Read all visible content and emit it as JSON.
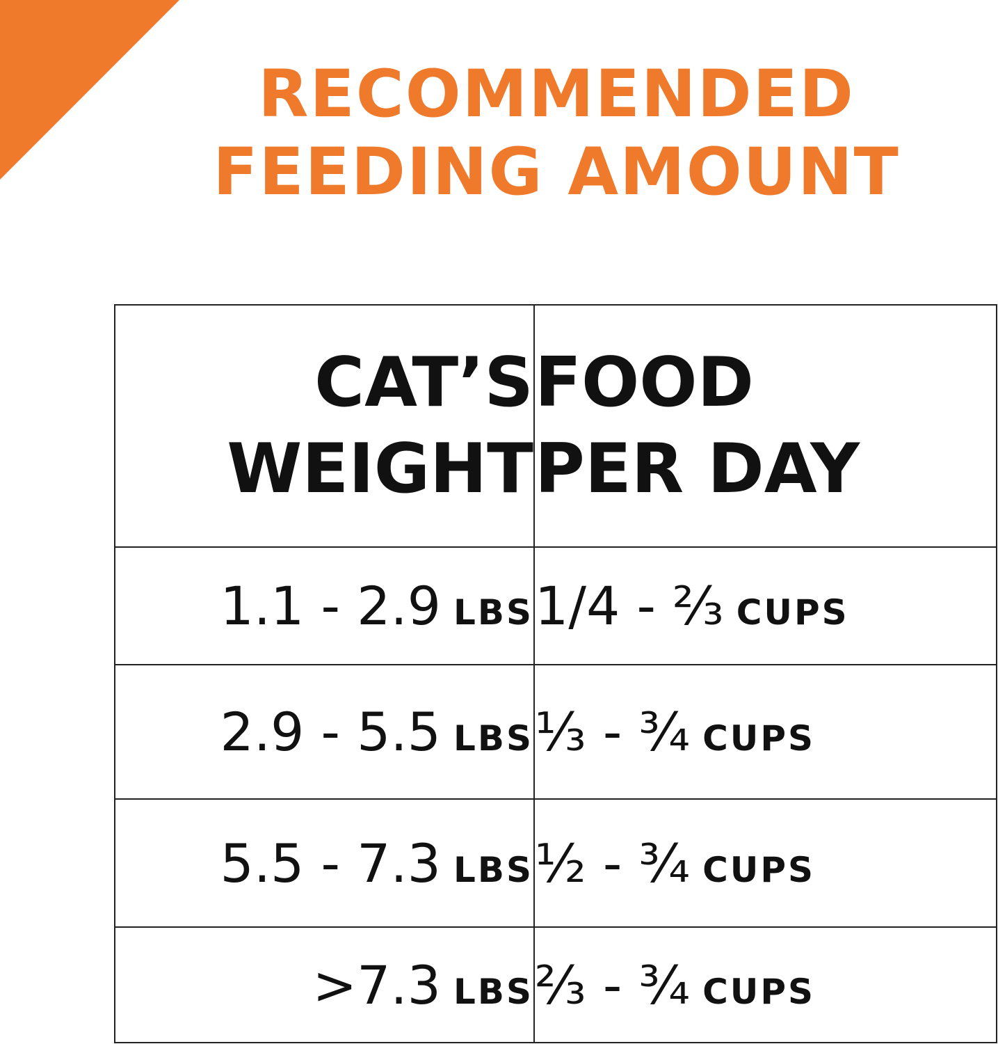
{
  "title": {
    "line1": "RECOMMENDED",
    "line2": "FEEDING AMOUNT"
  },
  "colors": {
    "accent": "#ef7a2b",
    "text": "#111111",
    "border": "#222222"
  },
  "table": {
    "headers": {
      "weight": {
        "line1": "CAT’S",
        "line2": "WEIGHT"
      },
      "food": {
        "line1": "FOOD",
        "line2": "PER DAY"
      }
    },
    "rows": [
      {
        "weight": "1.1 - 2.9",
        "weight_unit": "LBS",
        "food": "1/4 - ⅔",
        "food_unit": "CUPS"
      },
      {
        "weight": "2.9 - 5.5",
        "weight_unit": "LBS",
        "food": "⅓ - ¾",
        "food_unit": "CUPS"
      },
      {
        "weight": "5.5 - 7.3",
        "weight_unit": "LBS",
        "food": "½ - ¾",
        "food_unit": "CUPS"
      },
      {
        "weight": ">7.3",
        "weight_unit": "LBS",
        "food": "⅔ - ¾",
        "food_unit": "CUPS"
      }
    ]
  }
}
